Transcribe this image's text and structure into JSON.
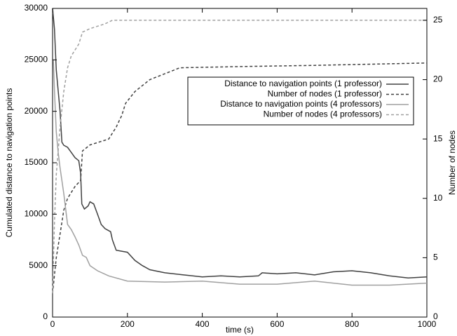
{
  "chart_data": {
    "type": "line",
    "xlabel": "time (s)",
    "ylabel": "Cumulated distance to navigation points",
    "y2label": "Number of nodes",
    "xlim": [
      0,
      1000
    ],
    "xticks": [
      0,
      200,
      400,
      600,
      800,
      1000
    ],
    "ylim": [
      0,
      30000
    ],
    "yticks": [
      0,
      5000,
      10000,
      15000,
      20000,
      25000,
      30000
    ],
    "y2lim": [
      0,
      26
    ],
    "y2ticks": [
      0,
      5,
      10,
      15,
      20,
      25
    ],
    "legend": "upper right",
    "series": [
      {
        "name": "Distance to navigation points (1 professor)",
        "color": "#404040",
        "style": "solid",
        "axis": "y",
        "x": [
          0,
          5,
          10,
          15,
          20,
          25,
          30,
          40,
          50,
          60,
          70,
          75,
          78,
          85,
          95,
          100,
          110,
          120,
          130,
          140,
          155,
          160,
          170,
          200,
          220,
          240,
          260,
          300,
          350,
          400,
          450,
          500,
          550,
          560,
          600,
          650,
          700,
          750,
          800,
          850,
          900,
          950,
          1000
        ],
        "values": [
          30000,
          28000,
          24000,
          22000,
          20000,
          17000,
          16700,
          16500,
          16000,
          15500,
          15200,
          14000,
          11000,
          10500,
          10800,
          11200,
          11000,
          10000,
          9000,
          8600,
          8300,
          7500,
          6500,
          6300,
          5500,
          5000,
          4600,
          4300,
          4100,
          3900,
          4000,
          3900,
          4000,
          4300,
          4200,
          4300,
          4100,
          4400,
          4500,
          4300,
          4000,
          3800,
          3900
        ]
      },
      {
        "name": "Number of nodes (1 professor)",
        "color": "#404040",
        "style": "dashed",
        "axis": "y2",
        "x": [
          0,
          10,
          20,
          30,
          40,
          50,
          60,
          75,
          80,
          100,
          150,
          170,
          185,
          195,
          220,
          260,
          300,
          340,
          500,
          700,
          1000
        ],
        "values": [
          2,
          5,
          7,
          9,
          10,
          10.5,
          11,
          11.5,
          14,
          14.5,
          15,
          16,
          17,
          18,
          19,
          20,
          20.5,
          21,
          21.1,
          21.2,
          21.4
        ]
      },
      {
        "name": "Distance to navigation points (4 professors)",
        "color": "#a0a0a0",
        "style": "solid",
        "axis": "y",
        "x": [
          2,
          5,
          10,
          15,
          20,
          30,
          40,
          50,
          60,
          70,
          80,
          90,
          100,
          120,
          150,
          200,
          300,
          400,
          500,
          600,
          700,
          800,
          900,
          1000
        ],
        "values": [
          25000,
          22000,
          18000,
          16000,
          14500,
          12000,
          9000,
          8500,
          7800,
          7000,
          6000,
          5800,
          5000,
          4500,
          4000,
          3500,
          3400,
          3500,
          3200,
          3200,
          3500,
          3100,
          3100,
          3300
        ]
      },
      {
        "name": "Number of nodes (4 professors)",
        "color": "#a0a0a0",
        "style": "dashed",
        "axis": "y2",
        "x": [
          0,
          5,
          10,
          20,
          30,
          40,
          50,
          70,
          80,
          100,
          140,
          160,
          1000
        ],
        "values": [
          2,
          8,
          12,
          16,
          19,
          21,
          22,
          23,
          24,
          24.3,
          24.7,
          25,
          25
        ]
      }
    ]
  }
}
